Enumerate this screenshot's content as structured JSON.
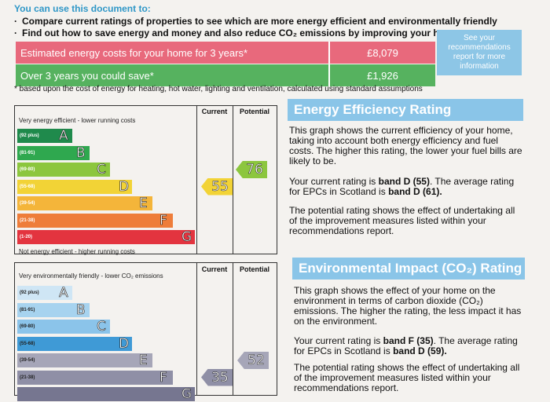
{
  "intro": {
    "title": "You can use this document to:",
    "bullets": [
      "Compare current ratings of properties to see which are more energy efficient and environmentally friendly",
      "Find out how to save energy and money and also reduce CO₂ emissions by improving your home"
    ]
  },
  "costs": {
    "estimated_label": "Estimated energy costs for your home for 3 years*",
    "estimated_value": "£8,079",
    "save_label": "Over 3 years you could save*",
    "save_value": "£1,926",
    "see_report": "See your recommendations report for more information",
    "footnote": "* based upon the cost of energy for heating, hot water, lighting and ventilation, calculated using standard assumptions",
    "colors": {
      "estimated": "#e8697c",
      "save": "#56b25f",
      "see": "#8dc6e6"
    }
  },
  "energy_chart": {
    "top_caption": "Very energy efficient - lower running costs",
    "bottom_caption": "Not energy efficient - higher running costs",
    "col_current": "Current",
    "col_potential": "Potential",
    "bands": [
      {
        "range": "(92 plus)",
        "letter": "A",
        "color": "#1f8a4c"
      },
      {
        "range": "(81-91)",
        "letter": "B",
        "color": "#2fa84f"
      },
      {
        "range": "(69-80)",
        "letter": "C",
        "color": "#8cc63e"
      },
      {
        "range": "(55-68)",
        "letter": "D",
        "color": "#f2d336"
      },
      {
        "range": "(39-54)",
        "letter": "E",
        "color": "#f4b53a"
      },
      {
        "range": "(21-38)",
        "letter": "F",
        "color": "#ee7d3a"
      },
      {
        "range": "(1-20)",
        "letter": "G",
        "color": "#e3343f"
      }
    ],
    "current": {
      "value": "55",
      "band_index": 3
    },
    "potential": {
      "value": "76",
      "band_index": 2
    }
  },
  "env_chart": {
    "top_caption": "Very environmentally friendly - lower CO₂ emissions",
    "col_current": "Current",
    "col_potential": "Potential",
    "bands": [
      {
        "range": "(92 plus)",
        "letter": "A",
        "color": "#cfe6f5"
      },
      {
        "range": "(81-91)",
        "letter": "B",
        "color": "#a7d3ef"
      },
      {
        "range": "(69-80)",
        "letter": "C",
        "color": "#8bc4ea"
      },
      {
        "range": "(55-68)",
        "letter": "D",
        "color": "#3f9ad6"
      },
      {
        "range": "(39-54)",
        "letter": "E",
        "color": "#a6a6b8"
      },
      {
        "range": "(21-38)",
        "letter": "F",
        "color": "#8f8fa6"
      },
      {
        "range": "",
        "letter": "G",
        "color": "#767690"
      }
    ],
    "current": {
      "value": "35",
      "band_index": 5
    },
    "potential": {
      "value": "52",
      "band_index": 4
    }
  },
  "ee_rating": {
    "heading": "Energy Efficiency Rating",
    "para1": "This graph shows the current efficiency of your home, taking into account both energy efficiency and fuel costs. The higher this rating, the lower your fuel bills are likely to be.",
    "para2_a": "Your current rating is ",
    "para2_b": "band D (55)",
    "para2_c": ". The average rating for EPCs in Scotland is ",
    "para2_d": "band D (61).",
    "para3": "The potential rating shows the effect of undertaking all of the improvement measures listed within your recommendations report."
  },
  "ei_rating": {
    "heading": "Environmental Impact (CO₂) Rating",
    "para1": "This graph shows the effect of your home on the environment in terms of carbon dioxide (CO₂) emissions. The higher the rating, the less impact it has on the environment.",
    "para2_a": "Your current rating is ",
    "para2_b": "band F (35)",
    "para2_c": ". The average rating for EPCs in Scotland is ",
    "para2_d": "band D (59).",
    "para3": "The potential rating shows the effect of undertaking all of the improvement measures listed within your recommendations report."
  }
}
